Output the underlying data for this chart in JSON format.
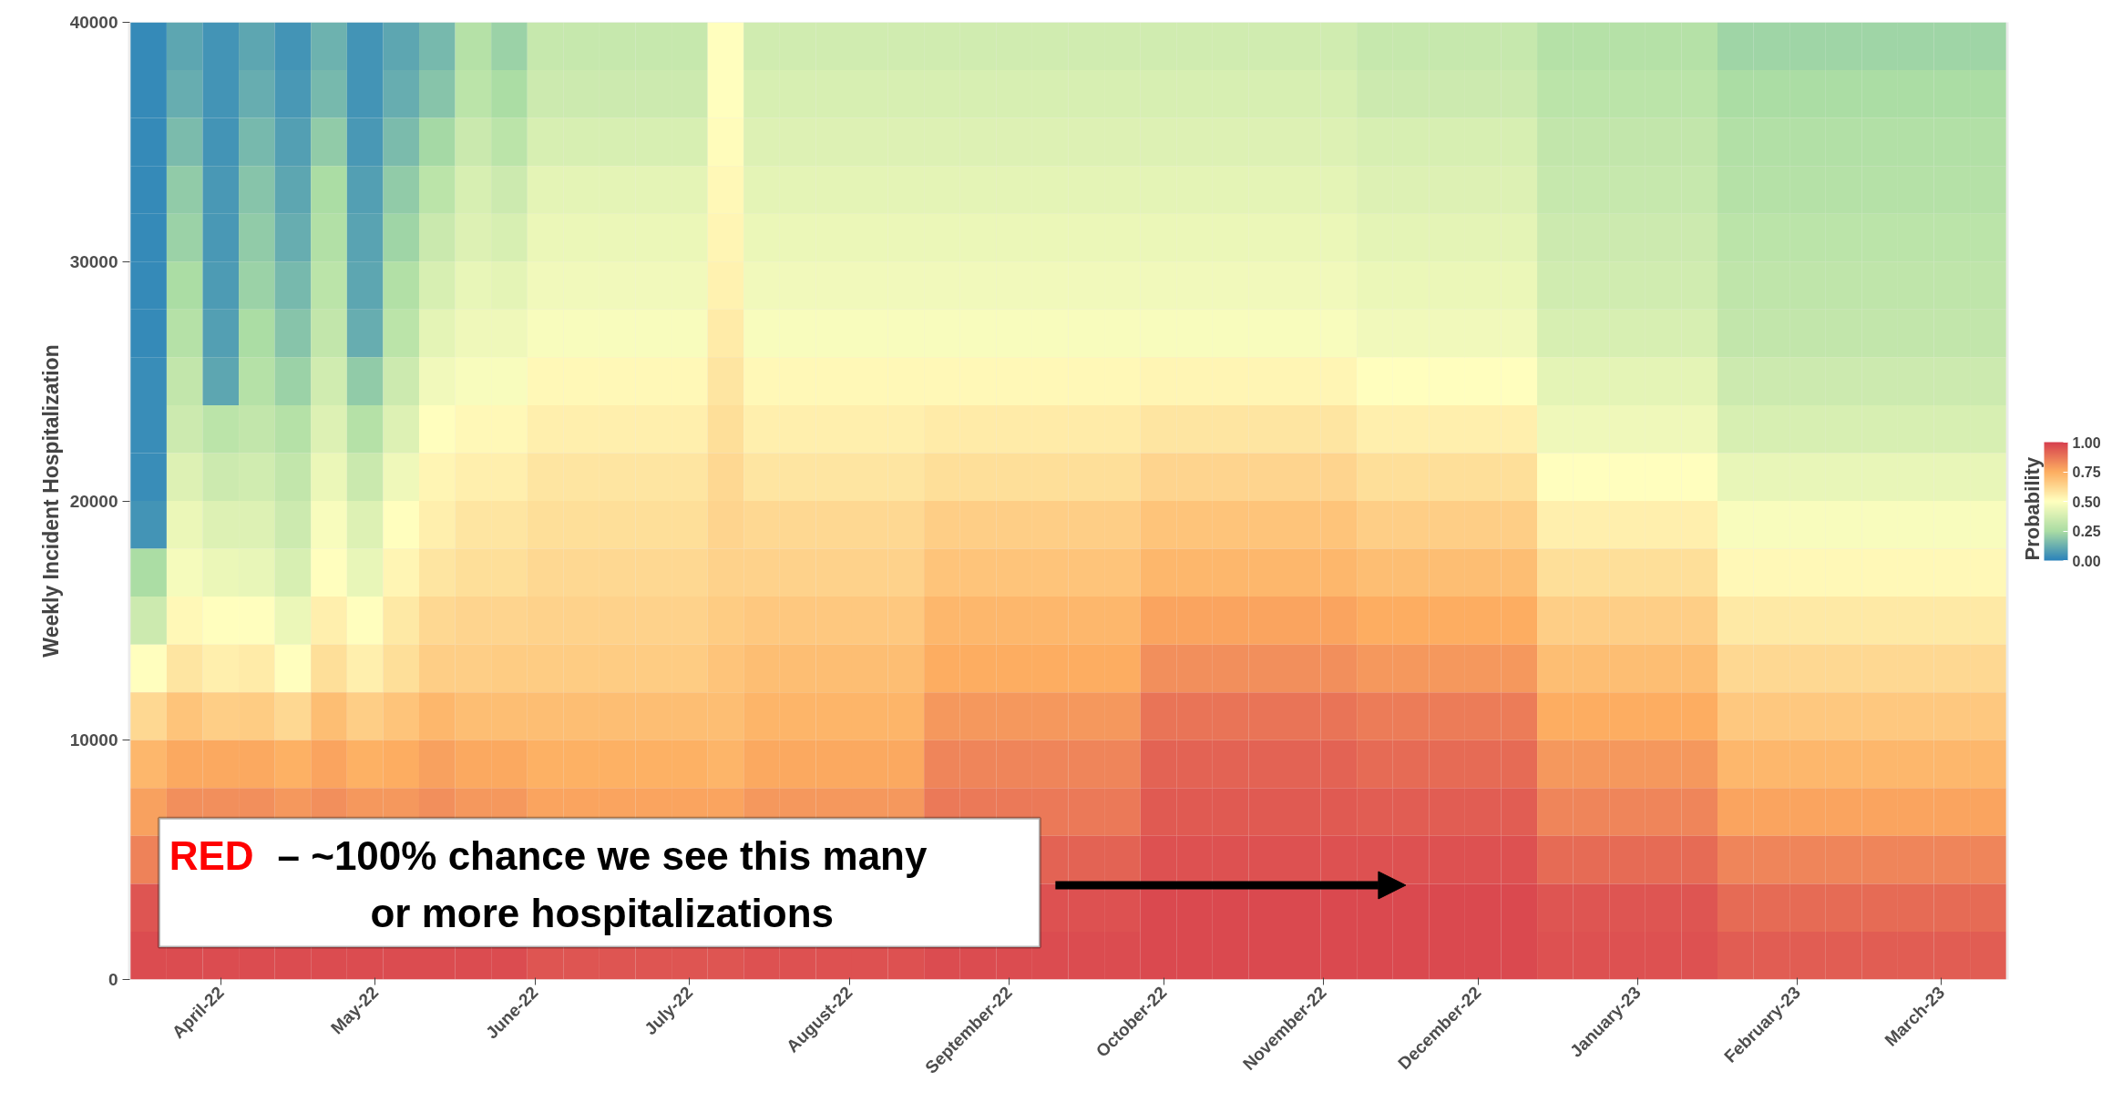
{
  "chart_data": {
    "type": "heatmap",
    "ylabel": "Weekly Incident Hospitalization",
    "clabel": "Probability",
    "x": [
      "2022-03-18",
      "2022-03-25",
      "2022-04-01",
      "2022-04-08",
      "2022-04-15",
      "2022-04-22",
      "2022-04-29",
      "2022-05-06",
      "2022-05-13",
      "2022-05-20",
      "2022-05-27",
      "2022-06-03",
      "2022-06-10",
      "2022-06-17",
      "2022-06-24",
      "2022-07-01",
      "2022-07-08",
      "2022-07-15",
      "2022-07-22",
      "2022-07-29",
      "2022-08-05",
      "2022-08-12",
      "2022-08-19",
      "2022-08-26",
      "2022-09-02",
      "2022-09-09",
      "2022-09-16",
      "2022-09-23",
      "2022-09-30",
      "2022-10-07",
      "2022-10-14",
      "2022-10-21",
      "2022-10-28",
      "2022-11-04",
      "2022-11-11",
      "2022-11-18",
      "2022-11-25",
      "2022-12-02",
      "2022-12-09",
      "2022-12-16",
      "2022-12-23",
      "2022-12-30",
      "2023-01-06",
      "2023-01-13",
      "2023-01-20",
      "2023-01-27",
      "2023-02-03",
      "2023-02-10",
      "2023-02-17",
      "2023-02-24",
      "2023-03-03",
      "2023-03-10"
    ],
    "xlim": [
      "2022-03-14",
      "2023-03-14"
    ],
    "xticks": [
      {
        "value": "2022-04-01",
        "label": "April-22"
      },
      {
        "value": "2022-05-01",
        "label": "May-22"
      },
      {
        "value": "2022-06-01",
        "label": "June-22"
      },
      {
        "value": "2022-07-01",
        "label": "July-22"
      },
      {
        "value": "2022-08-01",
        "label": "August-22"
      },
      {
        "value": "2022-09-01",
        "label": "September-22"
      },
      {
        "value": "2022-10-01",
        "label": "October-22"
      },
      {
        "value": "2022-11-01",
        "label": "November-22"
      },
      {
        "value": "2022-12-01",
        "label": "December-22"
      },
      {
        "value": "2023-01-01",
        "label": "January-23"
      },
      {
        "value": "2023-02-01",
        "label": "February-23"
      },
      {
        "value": "2023-03-01",
        "label": "March-23"
      }
    ],
    "ylim": [
      0,
      40000
    ],
    "yticks": [
      0,
      10000,
      20000,
      30000,
      40000
    ],
    "clim": [
      0,
      1
    ],
    "cticks": [
      {
        "value": 0,
        "label": "0.00"
      },
      {
        "value": 0.25,
        "label": "0.25"
      },
      {
        "value": 0.5,
        "label": "0.50"
      },
      {
        "value": 0.75,
        "label": "0.75"
      },
      {
        "value": 1,
        "label": "1.00"
      }
    ],
    "cells": [
      [
        0.02,
        0.1,
        0.05,
        0.1,
        0.05,
        0.13,
        0.05,
        0.1,
        0.15,
        0.28,
        0.22,
        0.33,
        0.33,
        0.33,
        0.33,
        0.33,
        0.5,
        0.36,
        0.36,
        0.36,
        0.36,
        0.36,
        0.36,
        0.36,
        0.36,
        0.36,
        0.36,
        0.36,
        0.36,
        0.36,
        0.36,
        0.36,
        0.36,
        0.36,
        0.33,
        0.33,
        0.33,
        0.33,
        0.33,
        0.28,
        0.28,
        0.28,
        0.28,
        0.28,
        0.23,
        0.23,
        0.23,
        0.23,
        0.23,
        0.23,
        0.23,
        0.23
      ],
      [
        0.02,
        0.12,
        0.05,
        0.12,
        0.06,
        0.15,
        0.05,
        0.12,
        0.18,
        0.3,
        0.25,
        0.35,
        0.35,
        0.35,
        0.35,
        0.35,
        0.5,
        0.38,
        0.38,
        0.38,
        0.38,
        0.38,
        0.38,
        0.38,
        0.38,
        0.38,
        0.38,
        0.38,
        0.38,
        0.38,
        0.38,
        0.38,
        0.38,
        0.38,
        0.35,
        0.35,
        0.35,
        0.35,
        0.35,
        0.3,
        0.3,
        0.3,
        0.3,
        0.3,
        0.25,
        0.25,
        0.25,
        0.25,
        0.25,
        0.25,
        0.25,
        0.25
      ],
      [
        0.02,
        0.16,
        0.05,
        0.15,
        0.08,
        0.2,
        0.06,
        0.16,
        0.24,
        0.34,
        0.3,
        0.38,
        0.38,
        0.38,
        0.38,
        0.38,
        0.51,
        0.4,
        0.4,
        0.4,
        0.4,
        0.4,
        0.4,
        0.4,
        0.4,
        0.4,
        0.4,
        0.4,
        0.4,
        0.4,
        0.4,
        0.4,
        0.4,
        0.4,
        0.38,
        0.38,
        0.38,
        0.38,
        0.38,
        0.32,
        0.32,
        0.32,
        0.32,
        0.32,
        0.27,
        0.27,
        0.27,
        0.27,
        0.27,
        0.27,
        0.27,
        0.27
      ],
      [
        0.02,
        0.2,
        0.06,
        0.18,
        0.1,
        0.25,
        0.08,
        0.2,
        0.3,
        0.38,
        0.35,
        0.42,
        0.42,
        0.42,
        0.42,
        0.42,
        0.52,
        0.42,
        0.42,
        0.42,
        0.42,
        0.42,
        0.42,
        0.42,
        0.42,
        0.42,
        0.42,
        0.42,
        0.42,
        0.42,
        0.42,
        0.42,
        0.42,
        0.42,
        0.4,
        0.4,
        0.4,
        0.4,
        0.4,
        0.33,
        0.33,
        0.33,
        0.33,
        0.33,
        0.28,
        0.28,
        0.28,
        0.28,
        0.28,
        0.28,
        0.28,
        0.28
      ],
      [
        0.02,
        0.22,
        0.06,
        0.2,
        0.12,
        0.27,
        0.09,
        0.23,
        0.34,
        0.4,
        0.38,
        0.44,
        0.44,
        0.44,
        0.44,
        0.44,
        0.53,
        0.44,
        0.44,
        0.44,
        0.44,
        0.44,
        0.44,
        0.44,
        0.44,
        0.44,
        0.44,
        0.44,
        0.44,
        0.44,
        0.44,
        0.44,
        0.44,
        0.44,
        0.42,
        0.42,
        0.42,
        0.42,
        0.42,
        0.35,
        0.35,
        0.35,
        0.35,
        0.35,
        0.3,
        0.3,
        0.3,
        0.3,
        0.3,
        0.3,
        0.3,
        0.3
      ],
      [
        0.02,
        0.25,
        0.07,
        0.22,
        0.15,
        0.3,
        0.1,
        0.27,
        0.38,
        0.43,
        0.42,
        0.46,
        0.46,
        0.46,
        0.46,
        0.46,
        0.54,
        0.46,
        0.46,
        0.46,
        0.46,
        0.46,
        0.46,
        0.46,
        0.46,
        0.46,
        0.46,
        0.46,
        0.46,
        0.46,
        0.46,
        0.46,
        0.46,
        0.46,
        0.44,
        0.44,
        0.44,
        0.44,
        0.44,
        0.36,
        0.36,
        0.36,
        0.36,
        0.36,
        0.31,
        0.31,
        0.31,
        0.31,
        0.31,
        0.31,
        0.31,
        0.31
      ],
      [
        0.02,
        0.28,
        0.08,
        0.25,
        0.18,
        0.32,
        0.12,
        0.3,
        0.42,
        0.45,
        0.45,
        0.48,
        0.48,
        0.48,
        0.48,
        0.48,
        0.56,
        0.48,
        0.48,
        0.48,
        0.48,
        0.48,
        0.48,
        0.48,
        0.48,
        0.48,
        0.48,
        0.48,
        0.48,
        0.48,
        0.48,
        0.48,
        0.48,
        0.48,
        0.46,
        0.46,
        0.46,
        0.46,
        0.46,
        0.38,
        0.38,
        0.38,
        0.38,
        0.38,
        0.32,
        0.32,
        0.32,
        0.32,
        0.32,
        0.32,
        0.32,
        0.32
      ],
      [
        0.03,
        0.32,
        0.1,
        0.28,
        0.22,
        0.36,
        0.2,
        0.35,
        0.46,
        0.48,
        0.48,
        0.52,
        0.52,
        0.52,
        0.52,
        0.52,
        0.58,
        0.52,
        0.52,
        0.52,
        0.52,
        0.52,
        0.52,
        0.52,
        0.52,
        0.52,
        0.52,
        0.52,
        0.53,
        0.53,
        0.53,
        0.53,
        0.53,
        0.53,
        0.5,
        0.5,
        0.5,
        0.5,
        0.5,
        0.42,
        0.42,
        0.42,
        0.42,
        0.42,
        0.35,
        0.35,
        0.35,
        0.35,
        0.35,
        0.35,
        0.35,
        0.35
      ],
      [
        0.03,
        0.35,
        0.3,
        0.32,
        0.28,
        0.4,
        0.28,
        0.4,
        0.5,
        0.52,
        0.52,
        0.55,
        0.55,
        0.55,
        0.55,
        0.55,
        0.6,
        0.55,
        0.55,
        0.55,
        0.55,
        0.55,
        0.56,
        0.56,
        0.56,
        0.56,
        0.56,
        0.56,
        0.58,
        0.58,
        0.58,
        0.58,
        0.58,
        0.58,
        0.55,
        0.55,
        0.55,
        0.55,
        0.55,
        0.45,
        0.45,
        0.45,
        0.45,
        0.45,
        0.38,
        0.38,
        0.38,
        0.38,
        0.38,
        0.38,
        0.38,
        0.38
      ],
      [
        0.03,
        0.4,
        0.35,
        0.36,
        0.32,
        0.44,
        0.34,
        0.45,
        0.53,
        0.55,
        0.55,
        0.58,
        0.58,
        0.58,
        0.58,
        0.58,
        0.62,
        0.58,
        0.58,
        0.58,
        0.58,
        0.58,
        0.6,
        0.6,
        0.6,
        0.6,
        0.6,
        0.6,
        0.63,
        0.63,
        0.63,
        0.63,
        0.63,
        0.63,
        0.6,
        0.6,
        0.6,
        0.6,
        0.6,
        0.5,
        0.5,
        0.5,
        0.5,
        0.5,
        0.43,
        0.43,
        0.43,
        0.43,
        0.43,
        0.43,
        0.43,
        0.43
      ],
      [
        0.05,
        0.44,
        0.4,
        0.4,
        0.35,
        0.48,
        0.4,
        0.5,
        0.55,
        0.58,
        0.58,
        0.6,
        0.6,
        0.6,
        0.6,
        0.6,
        0.63,
        0.62,
        0.62,
        0.62,
        0.62,
        0.62,
        0.65,
        0.65,
        0.65,
        0.65,
        0.65,
        0.65,
        0.68,
        0.68,
        0.68,
        0.68,
        0.68,
        0.68,
        0.65,
        0.65,
        0.65,
        0.65,
        0.65,
        0.55,
        0.55,
        0.55,
        0.55,
        0.55,
        0.48,
        0.48,
        0.48,
        0.48,
        0.48,
        0.48,
        0.48,
        0.48
      ],
      [
        0.25,
        0.47,
        0.44,
        0.43,
        0.38,
        0.5,
        0.43,
        0.53,
        0.58,
        0.6,
        0.6,
        0.62,
        0.62,
        0.62,
        0.62,
        0.62,
        0.64,
        0.64,
        0.64,
        0.64,
        0.64,
        0.64,
        0.68,
        0.68,
        0.68,
        0.68,
        0.68,
        0.68,
        0.72,
        0.72,
        0.72,
        0.72,
        0.72,
        0.72,
        0.7,
        0.7,
        0.7,
        0.7,
        0.7,
        0.6,
        0.6,
        0.6,
        0.6,
        0.6,
        0.52,
        0.52,
        0.52,
        0.52,
        0.52,
        0.52,
        0.52,
        0.52
      ],
      [
        0.35,
        0.52,
        0.5,
        0.5,
        0.44,
        0.55,
        0.5,
        0.57,
        0.62,
        0.63,
        0.63,
        0.64,
        0.64,
        0.64,
        0.64,
        0.64,
        0.66,
        0.67,
        0.67,
        0.67,
        0.67,
        0.67,
        0.72,
        0.72,
        0.72,
        0.72,
        0.72,
        0.72,
        0.77,
        0.77,
        0.77,
        0.77,
        0.77,
        0.77,
        0.75,
        0.75,
        0.75,
        0.75,
        0.75,
        0.65,
        0.65,
        0.65,
        0.65,
        0.65,
        0.57,
        0.57,
        0.57,
        0.57,
        0.57,
        0.57,
        0.57,
        0.57
      ],
      [
        0.5,
        0.58,
        0.55,
        0.56,
        0.5,
        0.6,
        0.55,
        0.6,
        0.65,
        0.65,
        0.66,
        0.66,
        0.66,
        0.66,
        0.66,
        0.66,
        0.68,
        0.7,
        0.7,
        0.7,
        0.7,
        0.7,
        0.75,
        0.75,
        0.75,
        0.75,
        0.75,
        0.75,
        0.82,
        0.82,
        0.82,
        0.82,
        0.82,
        0.82,
        0.8,
        0.8,
        0.8,
        0.8,
        0.8,
        0.7,
        0.7,
        0.7,
        0.7,
        0.7,
        0.62,
        0.62,
        0.62,
        0.62,
        0.62,
        0.62,
        0.62,
        0.62
      ],
      [
        0.62,
        0.68,
        0.65,
        0.66,
        0.62,
        0.7,
        0.65,
        0.68,
        0.72,
        0.7,
        0.7,
        0.7,
        0.7,
        0.7,
        0.7,
        0.7,
        0.7,
        0.73,
        0.73,
        0.73,
        0.73,
        0.73,
        0.8,
        0.8,
        0.8,
        0.8,
        0.8,
        0.8,
        0.88,
        0.88,
        0.88,
        0.88,
        0.88,
        0.88,
        0.86,
        0.86,
        0.86,
        0.86,
        0.86,
        0.75,
        0.75,
        0.75,
        0.75,
        0.75,
        0.67,
        0.67,
        0.67,
        0.67,
        0.67,
        0.67,
        0.67,
        0.67
      ],
      [
        0.72,
        0.76,
        0.76,
        0.76,
        0.74,
        0.77,
        0.74,
        0.75,
        0.78,
        0.76,
        0.76,
        0.74,
        0.74,
        0.74,
        0.74,
        0.74,
        0.73,
        0.76,
        0.76,
        0.76,
        0.76,
        0.76,
        0.84,
        0.84,
        0.84,
        0.84,
        0.84,
        0.84,
        0.92,
        0.92,
        0.92,
        0.92,
        0.92,
        0.92,
        0.9,
        0.9,
        0.9,
        0.9,
        0.9,
        0.8,
        0.8,
        0.8,
        0.8,
        0.8,
        0.72,
        0.72,
        0.72,
        0.72,
        0.72,
        0.72,
        0.72,
        0.72
      ],
      [
        0.78,
        0.82,
        0.82,
        0.82,
        0.8,
        0.82,
        0.8,
        0.8,
        0.82,
        0.8,
        0.8,
        0.77,
        0.77,
        0.77,
        0.77,
        0.77,
        0.77,
        0.8,
        0.8,
        0.8,
        0.8,
        0.8,
        0.87,
        0.87,
        0.87,
        0.87,
        0.87,
        0.87,
        0.94,
        0.94,
        0.94,
        0.94,
        0.94,
        0.94,
        0.93,
        0.93,
        0.93,
        0.93,
        0.93,
        0.84,
        0.84,
        0.84,
        0.84,
        0.84,
        0.77,
        0.77,
        0.77,
        0.77,
        0.77,
        0.77,
        0.77,
        0.77
      ],
      [
        0.85,
        null,
        null,
        null,
        null,
        null,
        null,
        null,
        null,
        null,
        null,
        null,
        null,
        null,
        null,
        null,
        null,
        null,
        null,
        null,
        null,
        null,
        null,
        null,
        null,
        0.92,
        0.92,
        0.92,
        0.96,
        0.96,
        0.96,
        0.96,
        0.96,
        0.96,
        0.96,
        0.96,
        0.96,
        0.96,
        0.96,
        0.9,
        0.9,
        0.9,
        0.9,
        0.9,
        0.84,
        0.84,
        0.84,
        0.84,
        0.84,
        0.84,
        0.84,
        0.84
      ],
      [
        0.95,
        null,
        null,
        null,
        null,
        null,
        null,
        null,
        null,
        null,
        null,
        null,
        null,
        null,
        null,
        null,
        null,
        null,
        null,
        null,
        null,
        null,
        null,
        null,
        null,
        0.96,
        0.96,
        0.96,
        0.98,
        0.98,
        0.98,
        0.98,
        0.98,
        0.98,
        0.98,
        0.98,
        0.98,
        0.98,
        0.98,
        0.95,
        0.95,
        0.95,
        0.95,
        0.95,
        0.9,
        0.9,
        0.9,
        0.9,
        0.9,
        0.9,
        0.9,
        0.9
      ],
      [
        0.97,
        0.97,
        0.97,
        0.97,
        0.97,
        0.97,
        0.97,
        0.97,
        0.97,
        0.97,
        0.97,
        0.95,
        0.95,
        0.95,
        0.95,
        0.95,
        0.95,
        0.96,
        0.96,
        0.96,
        0.96,
        0.96,
        0.97,
        0.97,
        0.97,
        0.97,
        0.97,
        0.97,
        0.98,
        0.98,
        0.98,
        0.98,
        0.98,
        0.98,
        0.98,
        0.98,
        0.98,
        0.98,
        0.98,
        0.96,
        0.96,
        0.96,
        0.96,
        0.96,
        0.93,
        0.93,
        0.93,
        0.93,
        0.93,
        0.93,
        0.93,
        0.93
      ]
    ],
    "annotations": [
      "RED – ~100% chance we see this many or more hospitalizations"
    ]
  }
}
